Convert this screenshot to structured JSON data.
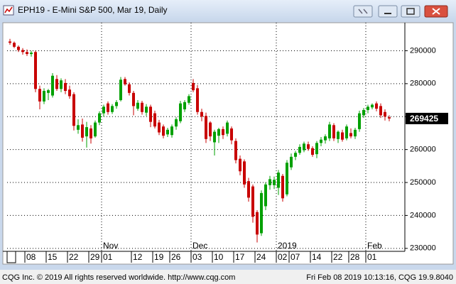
{
  "chart_data": {
    "type": "candlestick",
    "title": "EPH19 - E-Mini S&P 500, Mar 19, Daily",
    "categories": [
      null,
      null,
      null,
      null,
      "08",
      null,
      null,
      null,
      null,
      "15",
      null,
      null,
      null,
      null,
      "22",
      null,
      null,
      null,
      null,
      "29",
      null,
      null,
      "01",
      null,
      null,
      null,
      null,
      null,
      null,
      "12",
      null,
      null,
      null,
      null,
      "19",
      null,
      null,
      null,
      "26",
      null,
      null,
      null,
      null,
      "03",
      null,
      null,
      null,
      null,
      "10",
      null,
      null,
      null,
      null,
      "17",
      null,
      null,
      null,
      null,
      "24",
      null,
      null,
      null,
      null,
      "02",
      null,
      null,
      "07",
      null,
      null,
      null,
      null,
      "14",
      null,
      null,
      null,
      null,
      "22",
      null,
      null,
      null,
      "28",
      null,
      null,
      null,
      "01",
      null,
      null,
      null,
      null,
      null
    ],
    "month_labels": [
      {
        "index": 22,
        "label": "Nov"
      },
      {
        "index": 43,
        "label": "Dec"
      },
      {
        "index": 63,
        "label": "2019"
      },
      {
        "index": 84,
        "label": "Feb"
      }
    ],
    "open": [
      292800,
      292400,
      291200,
      290200,
      289600,
      289000,
      289600,
      278400,
      274600,
      277200,
      276400,
      281400,
      278400,
      280200,
      278200,
      276800,
      266000,
      267600,
      264000,
      266400,
      264000,
      268200,
      271000,
      274000,
      271400,
      273200,
      275000,
      281400,
      279800,
      277200,
      272400,
      274200,
      271200,
      273000,
      271000,
      268200,
      267000,
      264600,
      264400,
      267000,
      268600,
      272200,
      274200,
      280200,
      278600,
      271400,
      270200,
      268200,
      262200,
      264200,
      266200,
      264800,
      266400,
      262600,
      257200,
      256400,
      250400,
      248800,
      241000,
      234600,
      242800,
      249200,
      249200,
      248400,
      252000,
      246400,
      254600,
      257800,
      259000,
      259800,
      261600,
      260400,
      258600,
      262000,
      262800,
      263400,
      267400,
      263200,
      265200,
      263400,
      265000,
      264000,
      266200,
      270400,
      272000,
      272800,
      274000,
      273200,
      271400,
      269800
    ],
    "high": [
      293600,
      292800,
      291600,
      290800,
      290400,
      290000,
      290000,
      279400,
      278600,
      278400,
      283200,
      282600,
      281600,
      281400,
      279400,
      277400,
      269200,
      269400,
      268400,
      267400,
      268800,
      271600,
      273600,
      274600,
      273800,
      275000,
      282000,
      282000,
      280400,
      277800,
      275000,
      274800,
      273800,
      273600,
      271800,
      269000,
      267600,
      266600,
      267600,
      269800,
      274800,
      275000,
      276800,
      281400,
      279600,
      272400,
      271200,
      268600,
      266000,
      266600,
      267000,
      268800,
      267000,
      263400,
      258200,
      257000,
      251400,
      249400,
      241600,
      247600,
      250000,
      252000,
      251800,
      253800,
      252600,
      256800,
      258800,
      259600,
      261600,
      262400,
      262400,
      261000,
      262600,
      263800,
      264600,
      268400,
      268000,
      265800,
      266000,
      267600,
      266400,
      266600,
      271800,
      272600,
      273600,
      274000,
      274600,
      274000,
      272200,
      270400
    ],
    "low": [
      291800,
      290800,
      289600,
      288800,
      288400,
      288200,
      277400,
      272200,
      273800,
      275000,
      275800,
      277800,
      277400,
      276800,
      275400,
      265800,
      264800,
      262400,
      260600,
      261800,
      263600,
      267400,
      270000,
      270600,
      270800,
      272400,
      274600,
      279400,
      276400,
      270400,
      271800,
      270600,
      270200,
      266800,
      266400,
      264400,
      263400,
      263800,
      263600,
      266000,
      268000,
      271400,
      273600,
      277400,
      270600,
      268600,
      262000,
      262600,
      258200,
      262000,
      263200,
      264000,
      261600,
      255800,
      252200,
      248400,
      244200,
      237800,
      231800,
      233800,
      241600,
      247800,
      248000,
      246200,
      244200,
      245800,
      253800,
      256800,
      258400,
      259200,
      259600,
      257800,
      257400,
      261000,
      261800,
      262600,
      262600,
      262000,
      262400,
      262800,
      263400,
      263200,
      265400,
      269600,
      271000,
      272200,
      271600,
      269600,
      268800,
      268600
    ],
    "close": [
      292400,
      291200,
      290200,
      289600,
      289000,
      289400,
      278400,
      274600,
      277800,
      278000,
      282400,
      278400,
      281000,
      277800,
      276200,
      267200,
      267400,
      263600,
      266800,
      263400,
      268200,
      271000,
      273000,
      271400,
      273200,
      274400,
      281200,
      279800,
      277200,
      273200,
      274200,
      271400,
      273000,
      268400,
      267000,
      265200,
      264200,
      266000,
      267000,
      269200,
      274000,
      274400,
      276200,
      278000,
      271400,
      270000,
      263200,
      264000,
      265400,
      266200,
      264400,
      268200,
      262800,
      256800,
      253400,
      249400,
      245400,
      239600,
      234200,
      246800,
      249400,
      251000,
      250800,
      253000,
      245200,
      256000,
      257800,
      259000,
      260800,
      261800,
      260200,
      258400,
      262000,
      263000,
      264000,
      267600,
      263400,
      265400,
      263000,
      267000,
      264000,
      266000,
      271000,
      272000,
      273000,
      273600,
      272400,
      270400,
      270000,
      269425
    ],
    "up_color": "#00a000",
    "down_color": "#c80000",
    "ylim": [
      229100,
      298500
    ],
    "yticks": [
      230000,
      240000,
      250000,
      260000,
      270000,
      280000,
      290000
    ],
    "last_price": 269425,
    "grid": true
  },
  "footer": {
    "left": "CQG Inc. © 2019 All rights reserved worldwide. http://www.cqg.com",
    "right": "Fri Feb 08 2019 10:13:16, CQG 19.9.8040"
  }
}
